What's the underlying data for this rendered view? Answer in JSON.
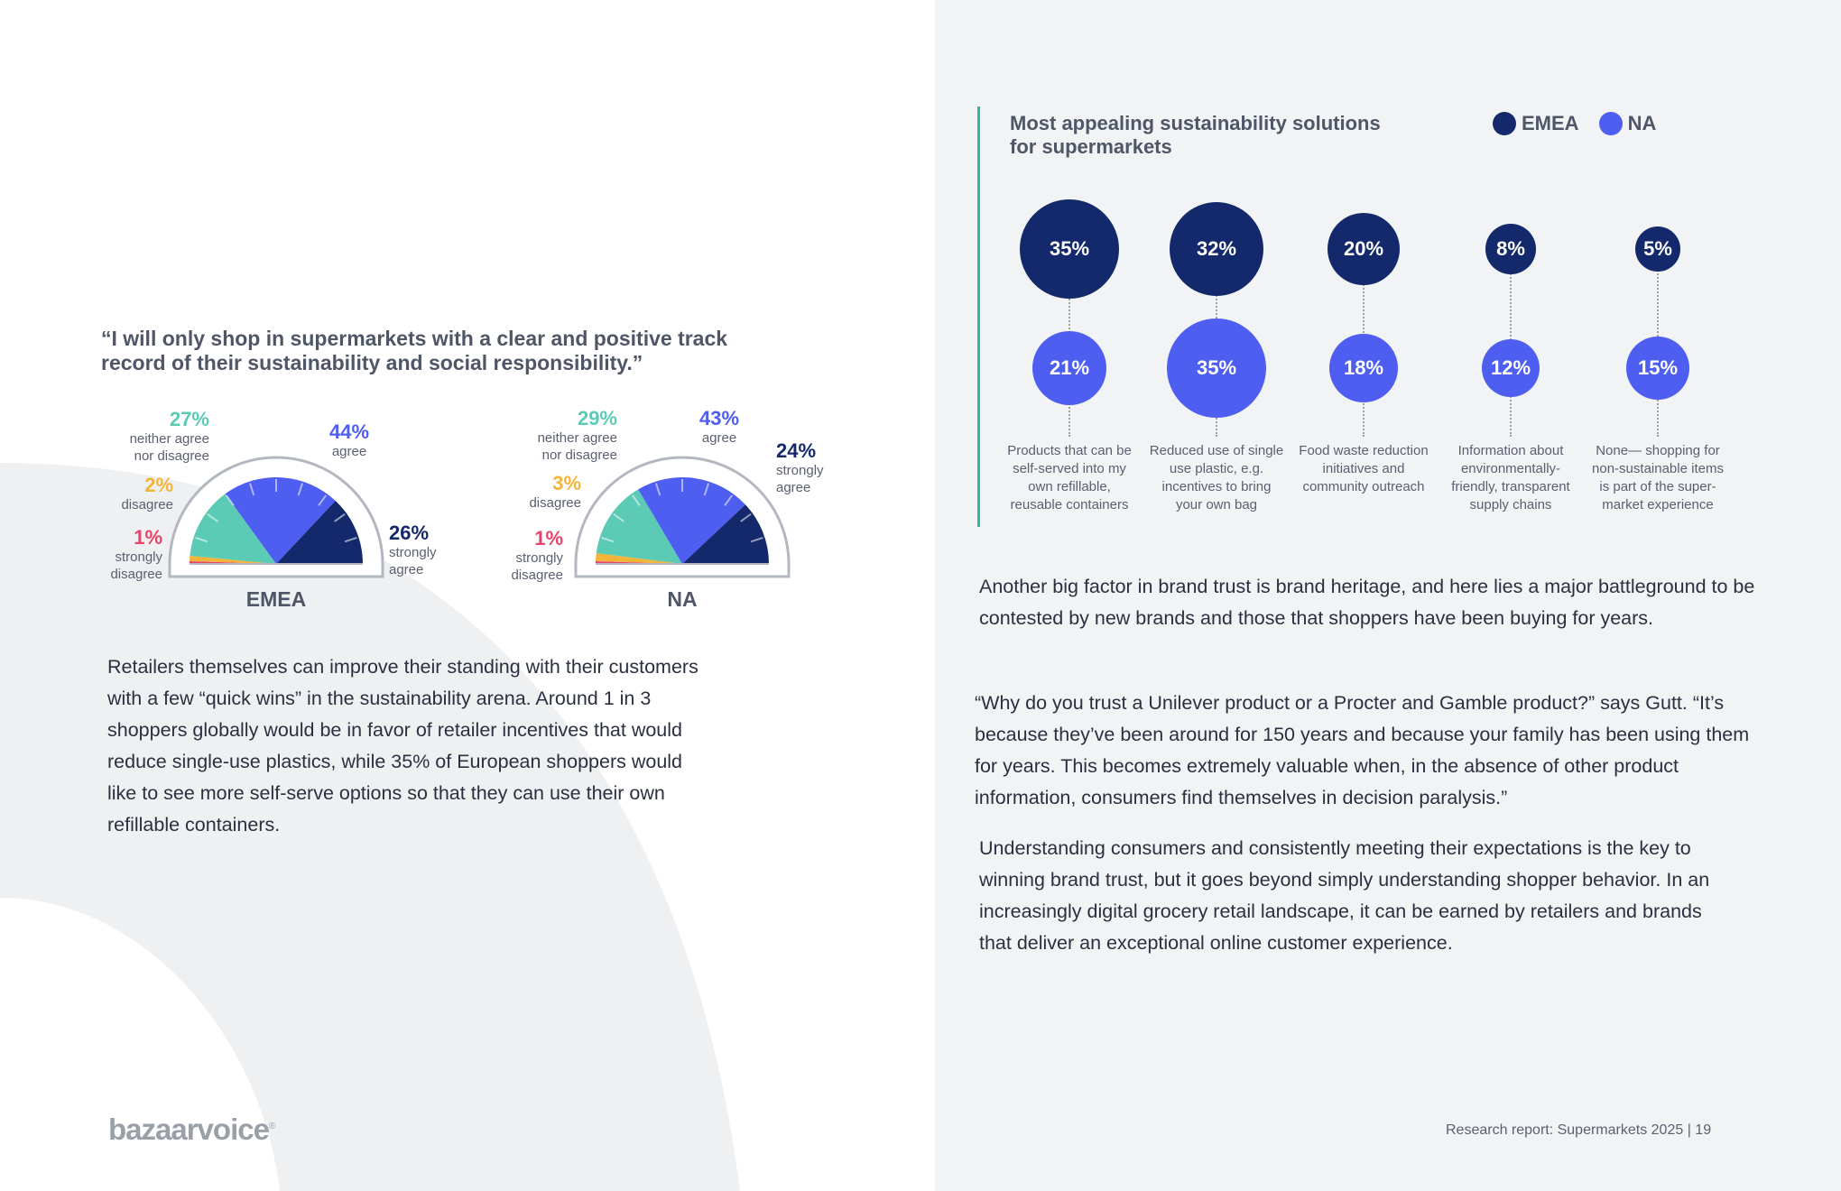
{
  "quote": "“I will only shop in supermarkets with a clear and positive track record of their sustainability and social responsibility.”",
  "gauges": [
    {
      "region": "EMEA",
      "segments": [
        {
          "label": "strongly disagree",
          "value": 1,
          "color": "#e8436a"
        },
        {
          "label": "disagree",
          "value": 2,
          "color": "#f2b53a"
        },
        {
          "label": "neither agree nor disagree",
          "value": 27,
          "color": "#5ccbb5"
        },
        {
          "label": "agree",
          "value": 44,
          "color": "#4d5ef0"
        },
        {
          "label": "strongly agree",
          "value": 26,
          "color": "#13296b"
        }
      ],
      "labels": {
        "neither": {
          "pct": "27%",
          "text": "neither agree nor disagree"
        },
        "agree": {
          "pct": "44%",
          "text": "agree"
        },
        "disagree": {
          "pct": "2%",
          "text": "disagree"
        },
        "strongly_disagree": {
          "pct": "1%",
          "text": "strongly disagree"
        },
        "strongly_agree": {
          "pct": "26%",
          "text": "strongly agree"
        }
      }
    },
    {
      "region": "NA",
      "segments": [
        {
          "label": "strongly disagree",
          "value": 1,
          "color": "#e8436a"
        },
        {
          "label": "disagree",
          "value": 3,
          "color": "#f2b53a"
        },
        {
          "label": "neither agree nor disagree",
          "value": 29,
          "color": "#5ccbb5"
        },
        {
          "label": "agree",
          "value": 43,
          "color": "#4d5ef0"
        },
        {
          "label": "strongly agree",
          "value": 24,
          "color": "#13296b"
        }
      ],
      "labels": {
        "neither": {
          "pct": "29%",
          "text": "neither agree nor disagree"
        },
        "agree": {
          "pct": "43%",
          "text": "agree"
        },
        "disagree": {
          "pct": "3%",
          "text": "disagree"
        },
        "strongly_disagree": {
          "pct": "1%",
          "text": "strongly disagree"
        },
        "strongly_agree": {
          "pct": "24%",
          "text": "strongly agree"
        }
      }
    }
  ],
  "left_paragraph": "Retailers themselves can improve their standing with their customers with a few “quick wins” in the sustainability arena. Around 1 in 3 shoppers globally would be in favor of retailer incentives that would reduce single-use plastics, while 35% of European shoppers would like to see more self-serve options so that they can use their own refillable containers.",
  "logo": "bazaarvoice",
  "chart_data": {
    "type": "bubble",
    "title": "Most appealing sustainability solutions for supermarkets",
    "legend": [
      {
        "name": "EMEA",
        "color": "#13296b"
      },
      {
        "name": "NA",
        "color": "#4d5ef0"
      }
    ],
    "categories": [
      "Products that can be self-served into my own refillable, reusable containers",
      "Reduced use of single use plastic, e.g. incentives to bring your own bag",
      "Food waste reduction initiatives and community outreach",
      "Information about environmentally-friendly, transparent supply chains",
      "None— shopping for non-sustainable items is part of the super-market experience"
    ],
    "series": [
      {
        "name": "EMEA",
        "values": [
          35,
          32,
          20,
          8,
          5
        ],
        "labels": [
          "35%",
          "32%",
          "20%",
          "8%",
          "5%"
        ]
      },
      {
        "name": "NA",
        "values": [
          21,
          35,
          18,
          12,
          15
        ],
        "labels": [
          "21%",
          "35%",
          "18%",
          "12%",
          "15%"
        ]
      }
    ]
  },
  "right_paragraphs": [
    "Another big factor in brand trust is brand heritage, and here lies a major battleground to be contested by new brands and those that shoppers have been buying for years.",
    "“Why do you trust a Unilever product or a Procter and Gamble product?” says Gutt. “It’s because they’ve been around for 150 years and because your family has been using them for years. This becomes extremely valuable when, in the absence of other product information, consumers find themselves in decision paralysis.”",
    "Understanding consumers and consistently meeting their expectations is the key to winning brand trust, but it goes beyond simply understanding shopper behavior. In an increasingly digital grocery retail landscape, it can be earned by retailers and brands that deliver an exceptional online customer experience."
  ],
  "footer": "Research report: Supermarkets 2025  |  19"
}
